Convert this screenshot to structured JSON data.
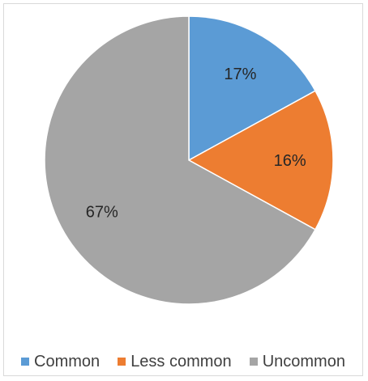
{
  "chart_data": {
    "type": "pie",
    "title": "",
    "legend_position": "bottom",
    "slices": [
      {
        "name": "Common",
        "value": 17,
        "label": "17%",
        "color": "#5b9bd5"
      },
      {
        "name": "Less common",
        "value": 16,
        "label": "16%",
        "color": "#ed7d31"
      },
      {
        "name": "Uncommon",
        "value": 67,
        "label": "67%",
        "color": "#a5a5a5"
      }
    ]
  }
}
